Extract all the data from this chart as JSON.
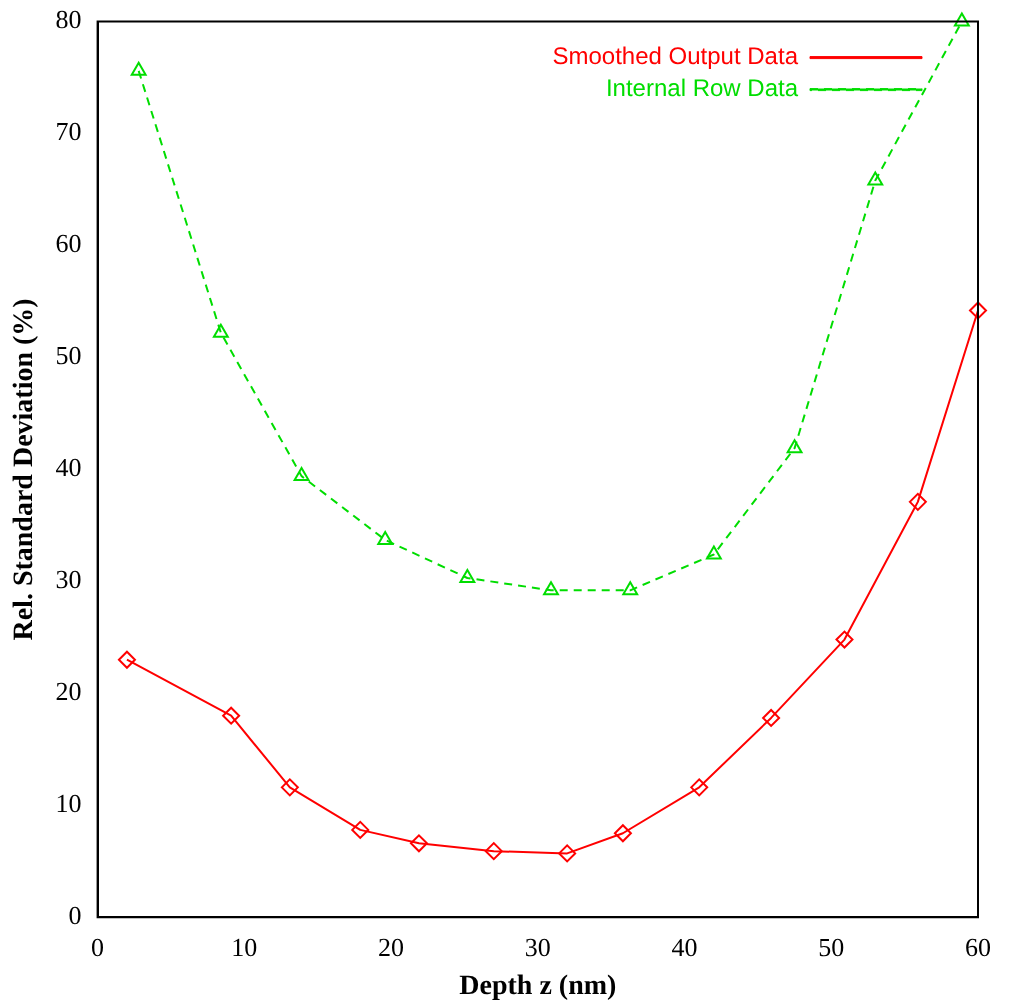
{
  "chart_data": {
    "type": "line",
    "xlabel": "Depth z (nm)",
    "ylabel": "Rel. Standard Deviation (%)",
    "xlim": [
      0,
      60
    ],
    "xticks": [
      0,
      10,
      20,
      30,
      40,
      50,
      60
    ],
    "ylim": [
      0,
      80
    ],
    "yticks": [
      0,
      10,
      20,
      30,
      40,
      50,
      60,
      70,
      80
    ],
    "grid": false,
    "legend": "top right",
    "series": [
      {
        "name": "Smoothed Output Data",
        "color": "#ff0000",
        "marker": "diamond",
        "line_style": "solid",
        "x": [
          2,
          9.1,
          13.1,
          17.9,
          21.9,
          27,
          32,
          35.8,
          41,
          45.9,
          50.9,
          55.9,
          60
        ],
        "values": [
          23,
          18,
          11.6,
          7.8,
          6.6,
          5.9,
          5.7,
          7.5,
          11.6,
          17.8,
          24.8,
          37.1,
          54.2
        ]
      },
      {
        "name": "Internal Row Data",
        "color": "#00dd00",
        "marker": "triangle",
        "line_style": "dashed",
        "x": [
          2.8,
          8.4,
          13.9,
          19.6,
          25.2,
          30.9,
          36.3,
          42,
          47.5,
          53,
          58.9
        ],
        "values": [
          75.6,
          52.2,
          39.4,
          33.7,
          30.3,
          29.2,
          29.2,
          32.4,
          41.9,
          65.8,
          80
        ]
      }
    ]
  }
}
